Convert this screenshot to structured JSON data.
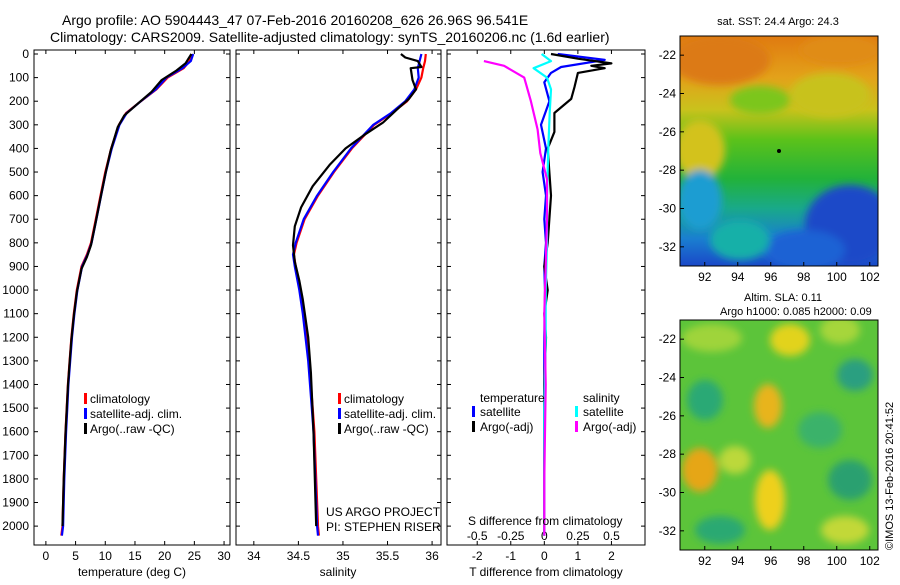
{
  "header": {
    "line1": "Argo profile: AO 5904443_47 07-Feb-2016 20160208_626 26.96S 96.541E",
    "line2": "Climatology: CARS2009. Satellite-adjusted climatology: synTS_20160206.nc (1.6d earlier)"
  },
  "colors": {
    "climatology": "#ff0000",
    "satellite": "#0000ff",
    "argo": "#000000",
    "sal_satellite": "#00ffff",
    "sal_argo": "#ff00ff"
  },
  "chart_data": [
    {
      "type": "line",
      "title": "",
      "xlabel": "temperature (deg C)",
      "ylabel": "",
      "xlim": [
        -2,
        31
      ],
      "ylim": [
        2080,
        0
      ],
      "xticks": [
        0,
        5,
        10,
        15,
        20,
        25,
        30
      ],
      "yticks": [
        0,
        100,
        200,
        300,
        400,
        500,
        600,
        700,
        800,
        900,
        1000,
        1100,
        1200,
        1300,
        1400,
        1500,
        1600,
        1700,
        1800,
        1900,
        2000
      ],
      "legend": [
        "climatology",
        "satellite-adj. clim.",
        "Argo(..raw -QC)"
      ],
      "series": [
        {
          "name": "climatology",
          "color": "#ff0000",
          "x": [
            24.5,
            24.2,
            23.2,
            20.5,
            18.6,
            16.0,
            13.5,
            12.3,
            11.0,
            10.0,
            9.2,
            8.4,
            7.6,
            6.9,
            6.0,
            5.2,
            4.7,
            4.3,
            4.0,
            3.7,
            3.5,
            3.3,
            3.0,
            2.8,
            2.6
          ],
          "y": [
            0,
            30,
            60,
            100,
            150,
            200,
            250,
            300,
            400,
            500,
            600,
            700,
            800,
            850,
            900,
            1000,
            1100,
            1200,
            1300,
            1400,
            1500,
            1600,
            1800,
            2000,
            2040
          ]
        },
        {
          "name": "satellite-adj. clim.",
          "color": "#0000ff",
          "x": [
            24.8,
            24.4,
            23.0,
            20.3,
            18.5,
            16.0,
            13.6,
            12.4,
            11.1,
            10.1,
            9.3,
            8.5,
            7.7,
            7.0,
            6.1,
            5.3,
            4.8,
            4.4,
            4.1,
            3.8,
            3.6,
            3.4,
            3.1,
            2.9,
            2.7
          ],
          "y": [
            0,
            30,
            60,
            100,
            150,
            200,
            250,
            300,
            400,
            500,
            600,
            700,
            800,
            850,
            900,
            1000,
            1100,
            1200,
            1300,
            1400,
            1500,
            1600,
            1800,
            2000,
            2040
          ]
        },
        {
          "name": "Argo(..raw -QC)",
          "color": "#000000",
          "x": [
            24.5,
            24.0,
            23.5,
            22.0,
            19.5,
            17.8,
            15.5,
            13.2,
            12.1,
            10.9,
            10.0,
            9.2,
            8.4,
            7.6,
            6.9,
            6.0,
            5.2,
            4.7,
            4.3,
            4.0,
            3.7,
            3.5,
            3.3,
            3.0,
            2.8
          ],
          "y": [
            0,
            20,
            40,
            70,
            110,
            160,
            210,
            260,
            310,
            410,
            510,
            610,
            710,
            810,
            860,
            910,
            1010,
            1110,
            1210,
            1310,
            1410,
            1510,
            1610,
            1810,
            2000
          ]
        }
      ]
    },
    {
      "type": "line",
      "title": "",
      "xlabel": "salinity",
      "ylabel": "",
      "xlim": [
        33.8,
        36.1
      ],
      "ylim": [
        2080,
        0
      ],
      "xticks": [
        34,
        34.5,
        35,
        35.5,
        36
      ],
      "legend": [
        "climatology",
        "satellite-adj. clim.",
        "Argo(..raw -QC)"
      ],
      "series": [
        {
          "name": "climatology",
          "color": "#ff0000",
          "x": [
            35.93,
            35.92,
            35.9,
            35.88,
            35.82,
            35.72,
            35.55,
            35.35,
            35.1,
            34.9,
            34.72,
            34.57,
            34.48,
            34.45,
            34.47,
            34.52,
            34.56,
            34.59,
            34.62,
            34.64,
            34.66,
            34.68,
            34.7,
            34.72,
            34.73
          ],
          "y": [
            0,
            30,
            60,
            100,
            150,
            200,
            250,
            300,
            400,
            500,
            600,
            700,
            800,
            850,
            900,
            1000,
            1100,
            1200,
            1300,
            1400,
            1500,
            1600,
            1800,
            2000,
            2040
          ]
        },
        {
          "name": "satellite-adj. clim.",
          "color": "#0000ff",
          "x": [
            35.88,
            35.86,
            35.84,
            35.85,
            35.8,
            35.7,
            35.54,
            35.34,
            35.09,
            34.89,
            34.71,
            34.56,
            34.47,
            34.44,
            34.46,
            34.51,
            34.55,
            34.58,
            34.61,
            34.63,
            34.65,
            34.67,
            34.69,
            34.71,
            34.72
          ],
          "y": [
            0,
            30,
            60,
            100,
            150,
            200,
            250,
            300,
            400,
            500,
            600,
            700,
            800,
            850,
            900,
            1000,
            1100,
            1200,
            1300,
            1400,
            1500,
            1600,
            1800,
            2000,
            2040
          ]
        },
        {
          "name": "Argo(..raw -QC)",
          "color": "#000000",
          "x": [
            35.65,
            35.7,
            35.84,
            35.88,
            35.76,
            35.78,
            35.82,
            35.74,
            35.62,
            35.45,
            35.25,
            35.03,
            34.85,
            34.66,
            34.53,
            34.46,
            34.44,
            34.46,
            34.51,
            34.55,
            34.58,
            34.61,
            34.64,
            34.67,
            34.7
          ],
          "y": [
            0,
            15,
            30,
            55,
            60,
            110,
            150,
            190,
            230,
            290,
            340,
            400,
            470,
            560,
            650,
            730,
            810,
            880,
            960,
            1040,
            1120,
            1200,
            1350,
            1600,
            2000
          ]
        }
      ]
    },
    {
      "type": "line",
      "title": "",
      "xlabel": "T difference from climatology",
      "ylabel": "",
      "xlim": [
        -2.9,
        3.0
      ],
      "ylim": [
        2080,
        0
      ],
      "xticks": [
        -2,
        -1,
        0,
        1,
        2
      ],
      "top_axis": {
        "label": "S difference from climatology",
        "ticks": [
          "-0.5",
          "-0.25",
          "0",
          "0.25",
          "0.5"
        ]
      },
      "legend": [
        "satellite",
        "Argo(-adj)",
        "satellite",
        "Argo(-adj)"
      ],
      "legend_groups": [
        "temperature",
        "salinity"
      ],
      "series": [
        {
          "name": "temperature satellite",
          "color": "#0000ff",
          "x": [
            0.4,
            1.8,
            0.5,
            0.2,
            0.0,
            0.15,
            -0.1,
            0.05,
            -0.05,
            0.05,
            0.0,
            0.05,
            0.0,
            0.02,
            0.0,
            0.0,
            0.0,
            0.0,
            0.0
          ],
          "y": [
            0,
            25,
            55,
            80,
            120,
            200,
            300,
            400,
            500,
            600,
            700,
            800,
            900,
            1000,
            1200,
            1400,
            1600,
            1800,
            2040
          ]
        },
        {
          "name": "temperature Argo(-adj)",
          "color": "#000000",
          "x": [
            0.2,
            1.0,
            2.0,
            1.4,
            1.8,
            1.0,
            0.9,
            0.8,
            0.3,
            0.3,
            0.1,
            0.2,
            0.1,
            0.0,
            0.1,
            0.0,
            0.05,
            0.0,
            0.0,
            0.0
          ],
          "y": [
            0,
            20,
            40,
            50,
            60,
            80,
            140,
            190,
            250,
            330,
            400,
            600,
            800,
            900,
            1000,
            1100,
            1200,
            1400,
            1800,
            2040
          ]
        },
        {
          "name": "salinity satellite",
          "color": "#00ffff",
          "x": [
            -0.02,
            0.05,
            -0.08,
            0.02,
            0.05,
            0.04,
            0.03,
            0.02,
            0.02,
            0.01,
            0.01,
            0.0,
            0.0,
            0.0
          ],
          "y": [
            0,
            30,
            60,
            100,
            150,
            250,
            400,
            600,
            800,
            1000,
            1200,
            1500,
            1800,
            2040
          ]
        },
        {
          "name": "salinity Argo(-adj)",
          "color": "#ff00ff",
          "x": [
            -0.45,
            -0.3,
            -0.15,
            -0.1,
            -0.05,
            -0.03,
            0.02,
            0.02,
            0.01,
            0.0,
            0.01,
            0.0,
            0.0
          ],
          "y": [
            30,
            50,
            100,
            200,
            320,
            420,
            530,
            700,
            900,
            1100,
            1400,
            1800,
            2040
          ]
        }
      ]
    },
    {
      "type": "heatmap",
      "title": "sat. SST: 24.4  Argo: 24.3",
      "xlabel": "",
      "ylabel": "",
      "xlim": [
        90.5,
        102.5
      ],
      "ylim": [
        -33,
        -21
      ],
      "xticks": [
        92,
        94,
        96,
        98,
        100,
        102
      ],
      "yticks": [
        -22,
        -24,
        -26,
        -28,
        -30,
        -32
      ],
      "argo_marker": [
        96.5,
        -27.0
      ]
    },
    {
      "type": "heatmap",
      "title": "Altim. SLA: 0.11",
      "subtitle": "Argo h1000: 0.085 h2000: 0.09",
      "xlabel": "",
      "ylabel": "",
      "xlim": [
        90.5,
        102.5
      ],
      "ylim": [
        -33,
        -21
      ],
      "xticks": [
        92,
        94,
        96,
        98,
        100,
        102
      ],
      "yticks": [
        -22,
        -24,
        -26,
        -28,
        -30,
        -32
      ]
    }
  ],
  "panels": {
    "temp": {
      "xlabel": "temperature (deg C)",
      "legend": [
        "climatology",
        "satellite-adj. clim.",
        "Argo(..raw -QC)"
      ]
    },
    "sal": {
      "xlabel": "salinity",
      "legend": [
        "climatology",
        "satellite-adj. clim.",
        "Argo(..raw -QC)"
      ],
      "project": "US ARGO PROJECT",
      "pi": "PI: STEPHEN RISER"
    },
    "diff": {
      "xlabel": "T difference from climatology",
      "top_label": "S difference from climatology",
      "legend_temperature": "temperature",
      "legend_salinity": "salinity",
      "legend_items": [
        "satellite",
        "Argo(-adj)",
        "satellite",
        "Argo(-adj)"
      ]
    },
    "sst": {
      "title": "sat. SST: 24.4  Argo: 24.3"
    },
    "sla": {
      "title": "Altim. SLA: 0.11",
      "subtitle": "Argo h1000: 0.085 h2000: 0.09"
    }
  },
  "footer": {
    "stamp": "©IMOS 13-Feb-2016 20:41:52"
  }
}
